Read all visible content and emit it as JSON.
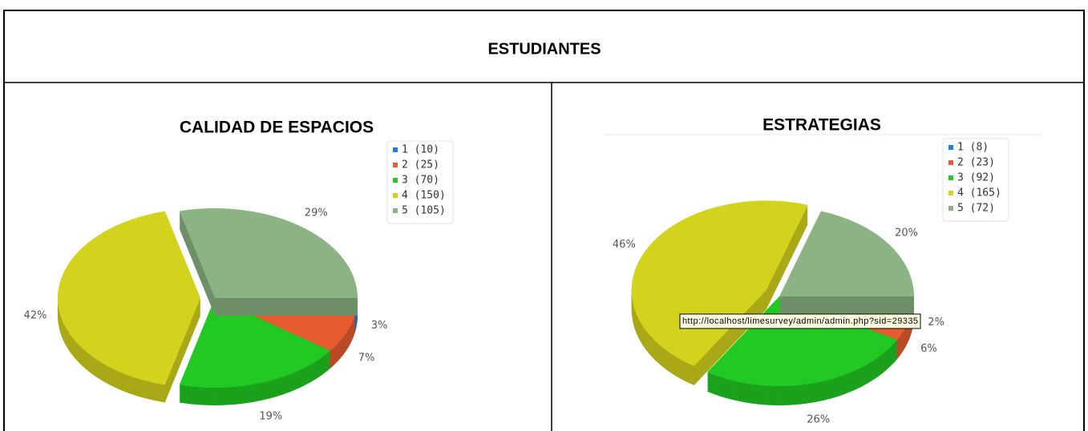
{
  "header": {
    "title": "ESTUDIANTES"
  },
  "chart_data": [
    {
      "type": "pie",
      "title": "CALIDAD DE ESPACIOS",
      "categories": [
        "1 (10)",
        "2 (25)",
        "3 (70)",
        "4 (150)",
        "5 (105)"
      ],
      "values": [
        3,
        7,
        19,
        42,
        29
      ],
      "value_labels": [
        "3%",
        "7%",
        "19%",
        "42%",
        "29%"
      ],
      "colors": [
        "#1e80d2",
        "#e65c30",
        "#22c922",
        "#d3d31e",
        "#8bb383"
      ],
      "explode": 3,
      "legend": "upper right"
    },
    {
      "type": "pie",
      "title": "ESTRATEGIAS",
      "categories": [
        "1 (8)",
        "2 (23)",
        "3 (92)",
        "4 (165)",
        "5 (72)"
      ],
      "values": [
        2,
        6,
        26,
        46,
        20
      ],
      "value_labels": [
        "2%",
        "6%",
        "26%",
        "46%",
        "20%"
      ],
      "colors": [
        "#1e80d2",
        "#e65c30",
        "#22c922",
        "#d3d31e",
        "#8bb383"
      ],
      "explode": 3,
      "legend": "upper right",
      "tooltip": "http://localhost/limesurvey/admin/admin.php?sid=29335"
    }
  ]
}
